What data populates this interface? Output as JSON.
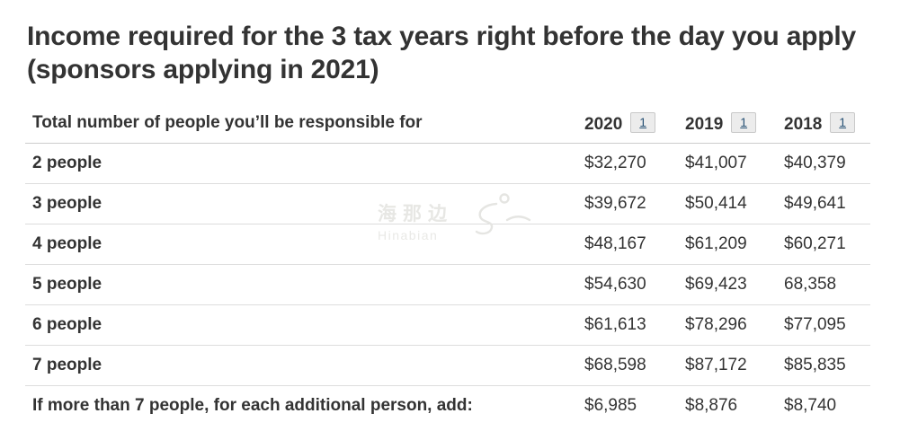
{
  "page": {
    "title": "Income required for the 3 tax years right before the day you apply (sponsors applying in 2021)"
  },
  "table": {
    "header": {
      "col1": "Total number of people you’ll be responsible for",
      "years": [
        {
          "label": "2020",
          "footnote": "1"
        },
        {
          "label": "2019",
          "footnote": "1"
        },
        {
          "label": "2018",
          "footnote": "1"
        }
      ]
    },
    "rows": [
      {
        "label": "2 people",
        "values": [
          "$32,270",
          "$41,007",
          "$40,379"
        ]
      },
      {
        "label": "3 people",
        "values": [
          "$39,672",
          "$50,414",
          "$49,641"
        ]
      },
      {
        "label": "4 people",
        "values": [
          "$48,167",
          "$61,209",
          "$60,271"
        ]
      },
      {
        "label": "5 people",
        "values": [
          "$54,630",
          "$69,423",
          "68,358"
        ]
      },
      {
        "label": "6 people",
        "values": [
          "$61,613",
          "$78,296",
          "$77,095"
        ]
      },
      {
        "label": "7 people",
        "values": [
          "$68,598",
          "$87,172",
          "$85,835"
        ]
      },
      {
        "label": "If more than 7 people, for each additional person, add:",
        "values": [
          "$6,985",
          "$8,876",
          "$8,740"
        ]
      }
    ]
  },
  "watermark": {
    "cn": "海那边",
    "en": "Hinabian"
  },
  "colors": {
    "text": "#333333",
    "header_divider": "#cccccc",
    "row_divider": "#dddddd",
    "footnote_bg": "#ececec",
    "footnote_border": "#c9c9c9",
    "footnote_link": "#295376",
    "watermark": "#e7e7e4"
  }
}
